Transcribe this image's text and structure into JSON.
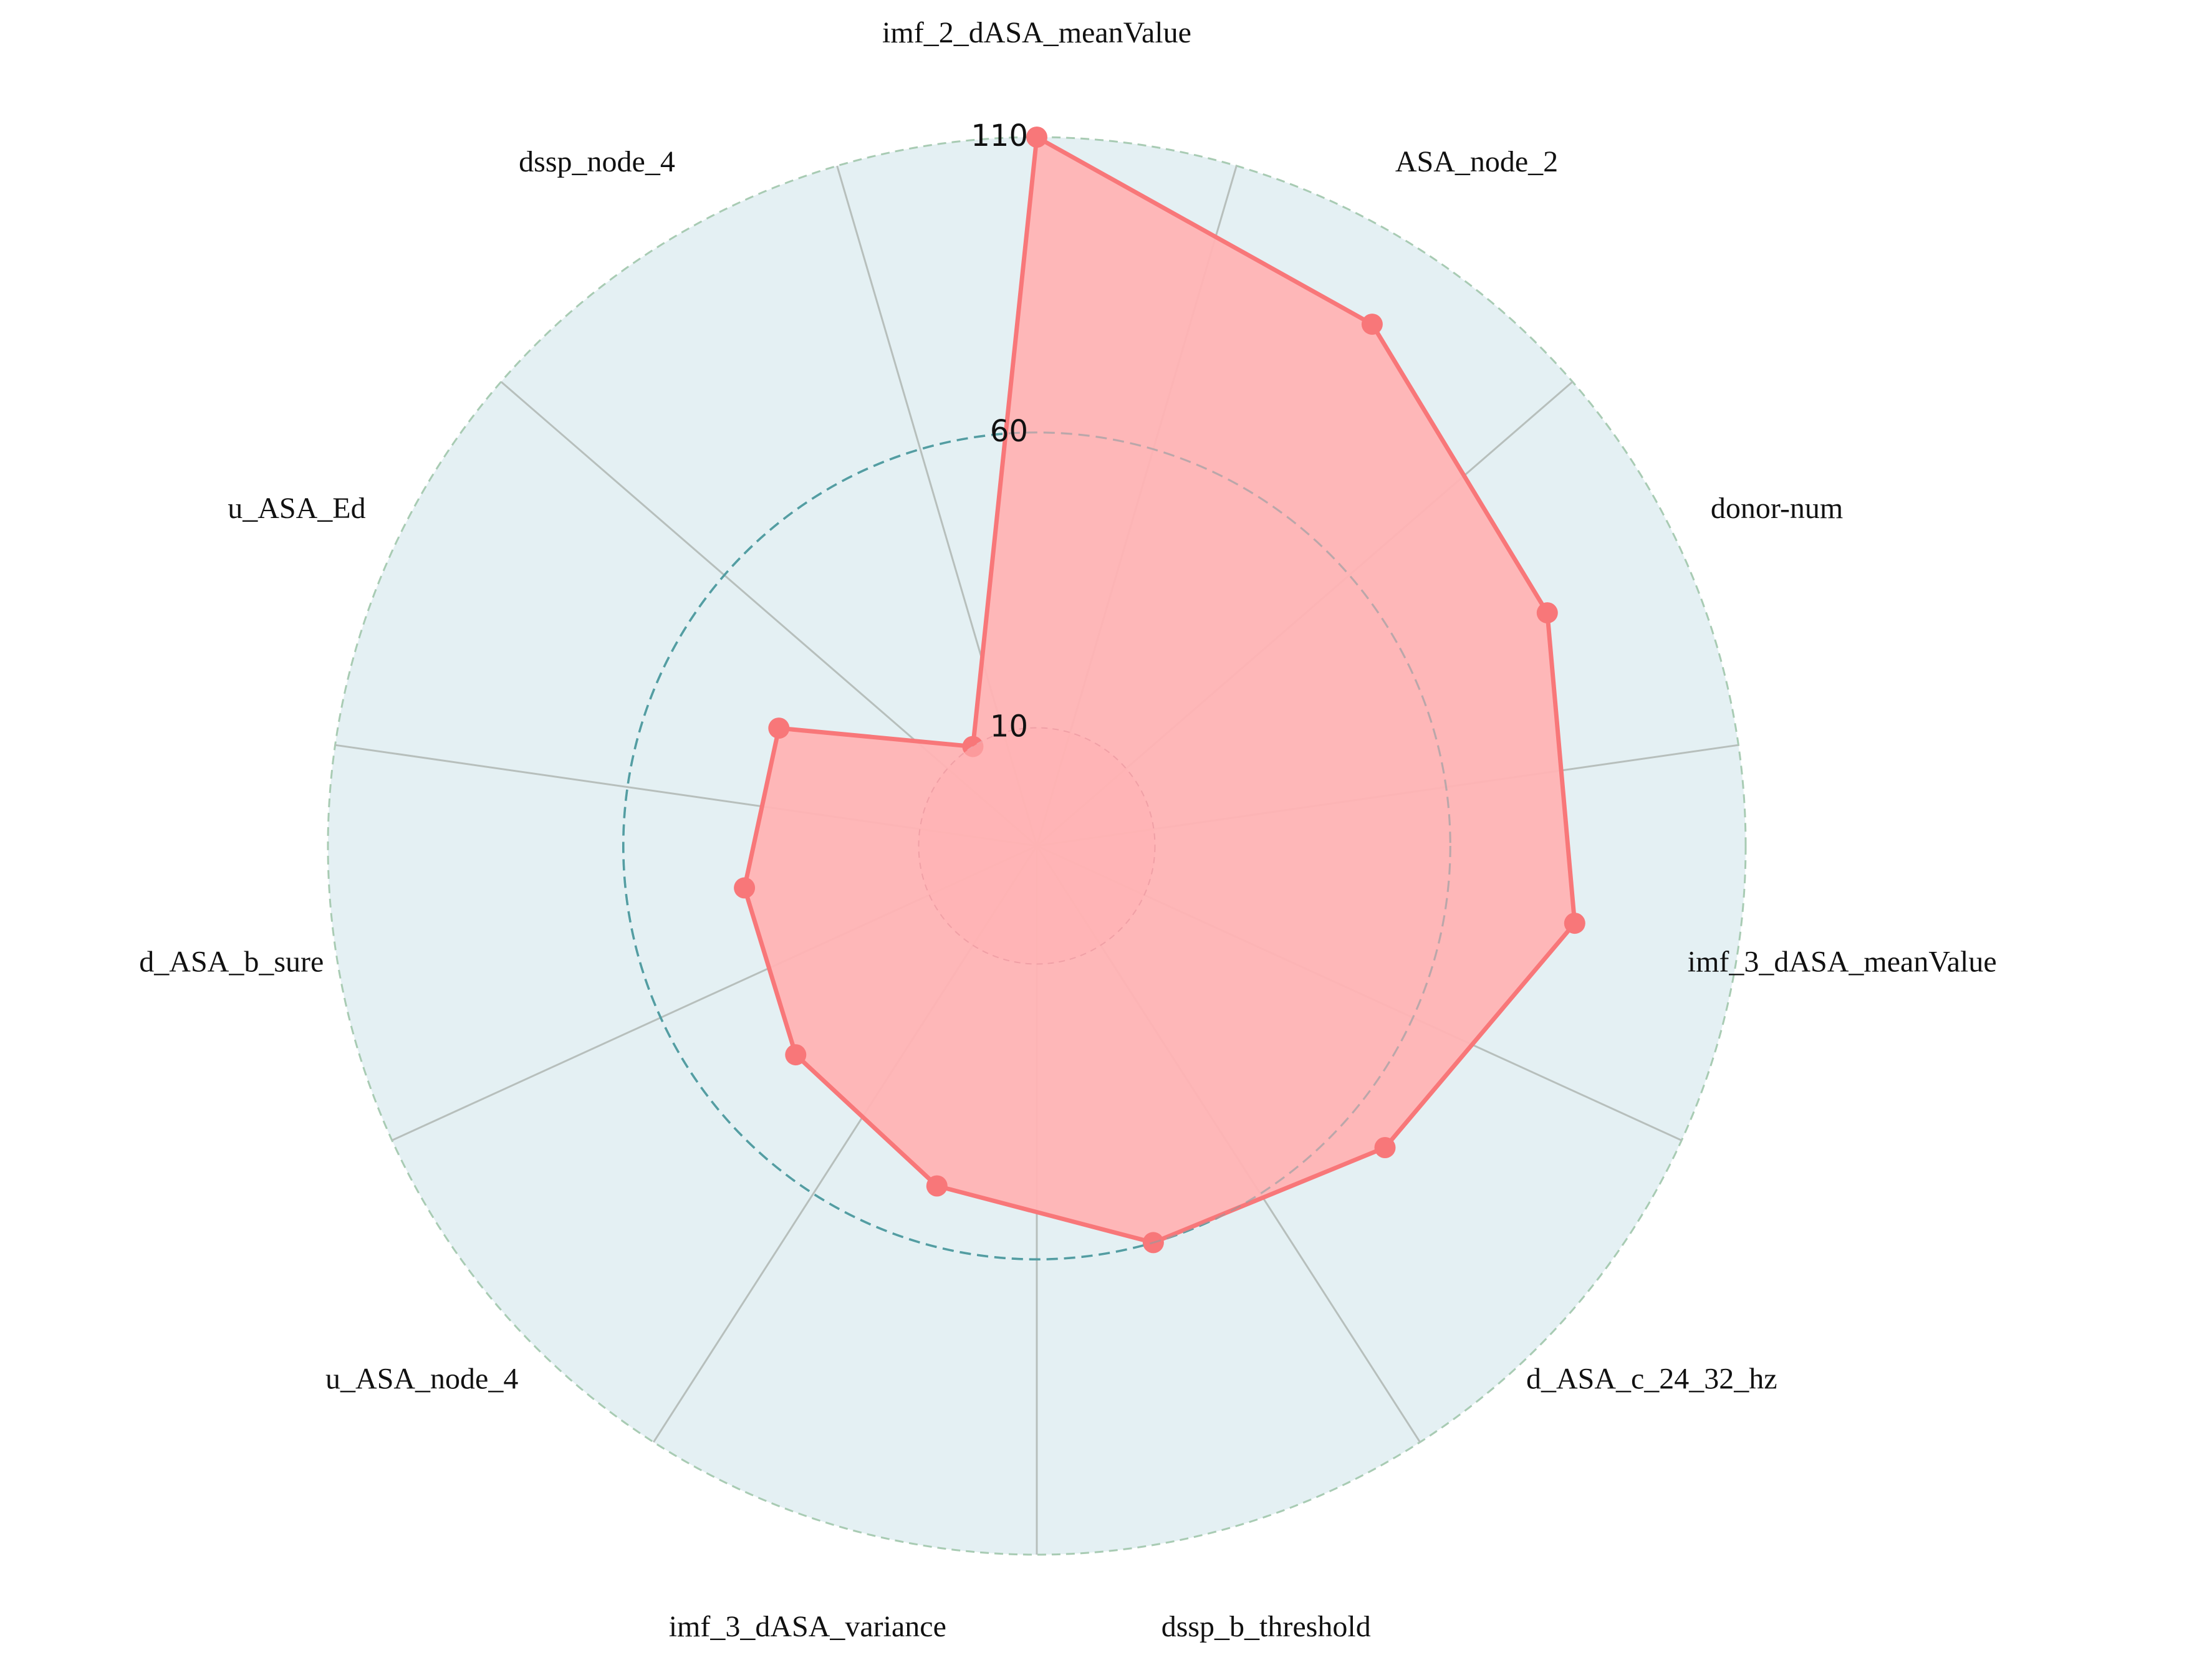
{
  "chart_data": {
    "type": "radar",
    "title": "",
    "categories": [
      "imf_2_dASA_meanValue",
      "ASA_node_2",
      "donor-num",
      "imf_3_dASA_meanValue",
      "d_ASA_c_24_32_hz",
      "dssp_b_threshold",
      "imf_3_dASA_variance",
      "u_ASA_node_4",
      "d_ASA_b_sure",
      "u_ASA_Ed",
      "dssp_node_4"
    ],
    "series": [
      {
        "values": [
          110,
          95,
          85,
          82,
          68,
          60,
          50,
          44,
          40,
          38,
          10
        ]
      }
    ],
    "r_ticks": [
      10,
      60,
      110
    ],
    "r_tick_labels": [
      "10",
      "60",
      "110"
    ],
    "rlim": [
      -10,
      110
    ],
    "grid": true,
    "legend": "none",
    "colors": {
      "series_line": "#f87779",
      "series_fill": "#ffb3b4",
      "background": "#e4f0f3",
      "outer_border": "#a8cbb3",
      "spokes": "#b7bfbc",
      "ring_inner": "#1a9a9f",
      "ring_over_fill": "#8a9ea3"
    }
  }
}
